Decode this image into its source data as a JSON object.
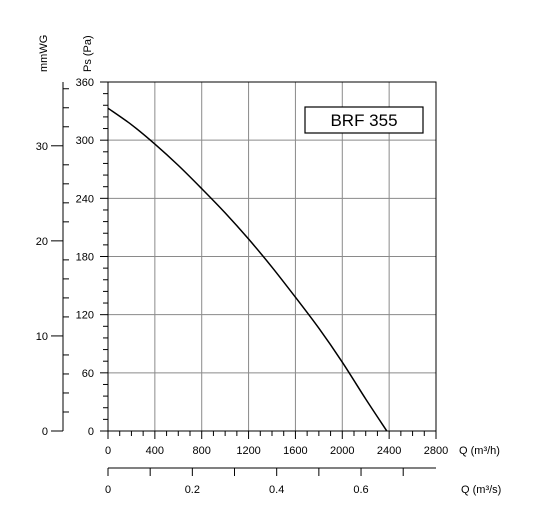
{
  "chart_data": {
    "type": "line",
    "model_label": "BRF 355",
    "ylabel_pa": "Ps (Pa)",
    "ylabel_mmwg": "mmWG",
    "xlabel_m3h": "Q (m³/h)",
    "xlabel_m3s": "Q (m³/s)",
    "xlim": [
      0,
      2800
    ],
    "ylim": [
      0,
      360
    ],
    "grid": true,
    "x_ticks": [
      "0",
      "400",
      "800",
      "1200",
      "1600",
      "2000",
      "2400",
      "2800"
    ],
    "y_ticks": [
      "0",
      "60",
      "120",
      "180",
      "240",
      "300",
      "360"
    ],
    "mmwg_ticks": [
      "0",
      "10",
      "20",
      "30"
    ],
    "m3s_ticks": [
      "0",
      "0.2",
      "0.4",
      "0.6"
    ],
    "series": [
      {
        "x": [
          0,
          200,
          400,
          600,
          800,
          1000,
          1200,
          1400,
          1600,
          1800,
          2000,
          2200,
          2380
        ],
        "values": [
          333,
          316,
          296,
          274,
          250,
          225,
          198,
          169,
          138,
          106,
          71,
          33,
          0
        ]
      }
    ]
  }
}
